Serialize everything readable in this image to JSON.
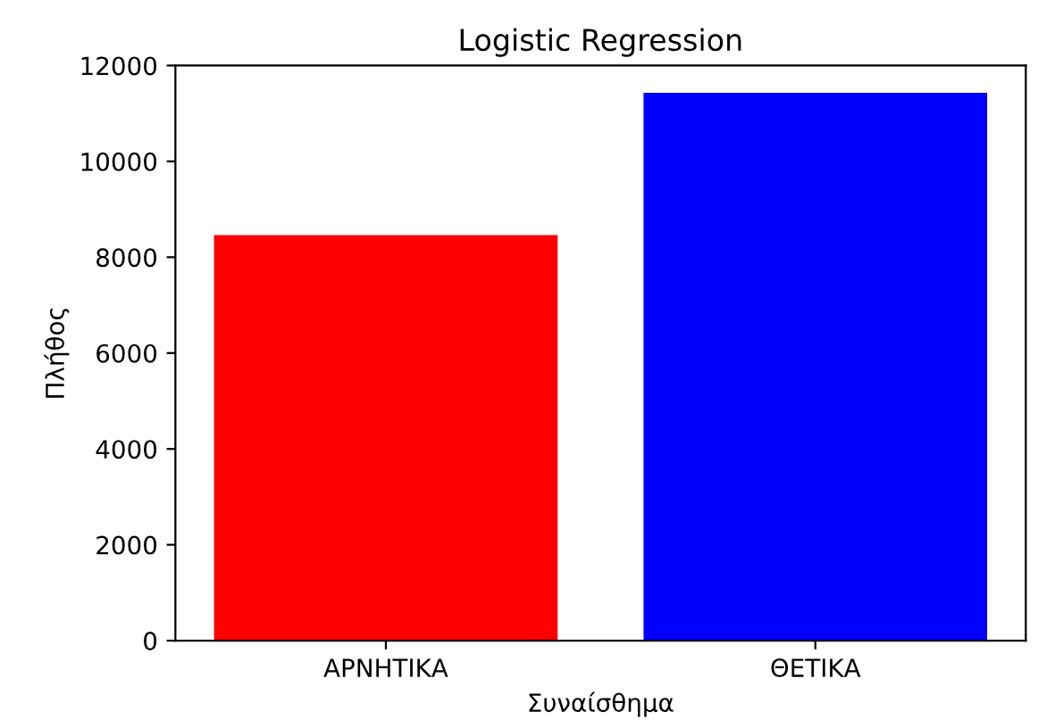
{
  "chart_data": {
    "type": "bar",
    "title": "Logistic Regression",
    "xlabel": "Συναίσθημα",
    "ylabel": "Πλήθος",
    "categories": [
      "ΑΡΝΗΤΙΚΑ",
      "ΘΕΤΙΚΑ"
    ],
    "values": [
      8460,
      11430
    ],
    "colors": [
      "#ff0000",
      "#0000ff"
    ],
    "ylim": [
      0,
      12000
    ],
    "yticks": [
      0,
      2000,
      4000,
      6000,
      8000,
      10000,
      12000
    ],
    "grid": false,
    "legend": false
  }
}
